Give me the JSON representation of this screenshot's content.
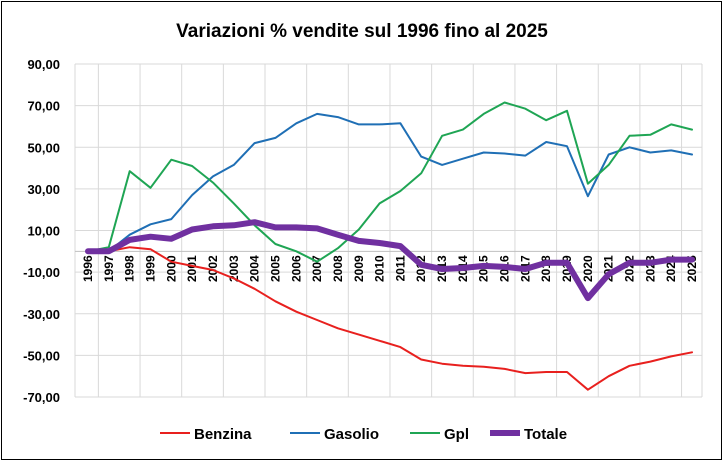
{
  "chart_data": {
    "type": "line",
    "title": "Variazioni % vendite sul 1996 fino al 2025",
    "xlabel": "",
    "ylabel": "",
    "ylim": [
      -70,
      90
    ],
    "yticks": [
      "90,00",
      "70,00",
      "50,00",
      "30,00",
      "10,00",
      "-10,00",
      "-30,00",
      "-50,00",
      "-70,00"
    ],
    "ytick_values": [
      90,
      70,
      50,
      30,
      10,
      -10,
      -30,
      -50,
      -70
    ],
    "grid": true,
    "legend_position": "bottom",
    "x": [
      "1996",
      "1997",
      "1998",
      "1999",
      "2000",
      "2001",
      "2002",
      "2003",
      "2004",
      "2005",
      "2006",
      "2007",
      "2008",
      "2009",
      "2010",
      "2011",
      "2012",
      "2013",
      "2014",
      "2015",
      "2016",
      "2017",
      "2018",
      "2019",
      "2020",
      "2021",
      "2022",
      "2023",
      "2024",
      "2025"
    ],
    "series": [
      {
        "name": "Benzina",
        "color": "#e8201e",
        "width": 2,
        "values": [
          0,
          0,
          2,
          1,
          -5,
          -7,
          -9,
          -13,
          -18,
          -24,
          -29,
          -33,
          -37,
          -40,
          -43,
          -46,
          -52,
          -54,
          -55,
          -55.5,
          -56.5,
          -58.5,
          -58,
          -58,
          -66.5,
          -60,
          -55,
          -53,
          -50.5,
          -48.5
        ]
      },
      {
        "name": "Gasolio",
        "color": "#1f6fb5",
        "width": 2,
        "values": [
          0,
          0,
          8,
          13,
          15.5,
          27,
          36,
          41.5,
          52,
          54.5,
          61.5,
          66,
          64.5,
          61,
          61,
          61.5,
          45.5,
          41.5,
          44.5,
          47.5,
          47,
          46,
          52.5,
          50.5,
          26.5,
          46.5,
          50,
          47.5,
          48.5,
          46.5
        ]
      },
      {
        "name": "Gpl",
        "color": "#1fa554",
        "width": 2,
        "values": [
          0,
          2,
          38.5,
          30.5,
          44,
          41,
          33,
          23,
          12.5,
          3.5,
          0,
          -5,
          1.5,
          10.5,
          23,
          29,
          37.5,
          55.5,
          58.5,
          66,
          71.5,
          68.5,
          63,
          67.5,
          32.5,
          41.5,
          55.5,
          56,
          61,
          58.5
        ]
      },
      {
        "name": "Totale",
        "color": "#7030a0",
        "width": 6,
        "values": [
          0,
          0,
          5.5,
          7,
          6,
          10.5,
          12,
          12.5,
          14,
          11.5,
          11.5,
          11,
          8,
          5,
          4,
          2.5,
          -6.5,
          -8.5,
          -8,
          -7,
          -7.5,
          -8.5,
          -5.5,
          -5.5,
          -22.5,
          -11,
          -5.5,
          -5.5,
          -4,
          -4
        ]
      }
    ]
  }
}
